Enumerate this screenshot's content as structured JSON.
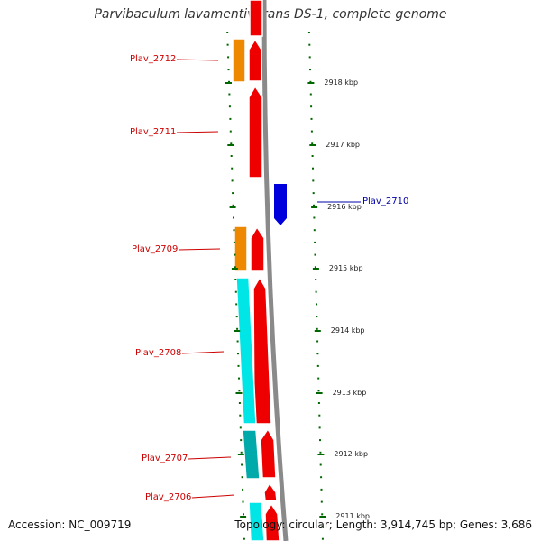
{
  "title": "Parvibaculum lavamentivorans DS-1, complete genome",
  "footer": {
    "accession": "Accession: NC_009719",
    "summary": "Topology: circular; Length: 3,914,745 bp; Genes: 3,686"
  },
  "tick_labels": [
    "2918 kbp",
    "2917 kbp",
    "2916 kbp",
    "2915 kbp",
    "2914 kbp",
    "2913 kbp",
    "2912 kbp",
    "2911 kbp"
  ],
  "genes": [
    {
      "label": "Plav_2712",
      "strand": "reverse"
    },
    {
      "label": "Plav_2711",
      "strand": "reverse"
    },
    {
      "label": "Plav_2710",
      "strand": "forward"
    },
    {
      "label": "Plav_2709",
      "strand": "reverse"
    },
    {
      "label": "Plav_2708",
      "strand": "reverse"
    },
    {
      "label": "Plav_2707",
      "strand": "reverse"
    },
    {
      "label": "Plav_2706",
      "strand": "reverse"
    }
  ],
  "colors": {
    "backbone": "#8a8a8a",
    "cds_red": "#ee0000",
    "feature_orange": "#ee8800",
    "feature_cyan": "#00e5e5",
    "feature_teal": "#00aaaa",
    "forward_blue": "#0000dd",
    "tick_green": "#006600",
    "label_red": "#cc0000",
    "label_blue": "#0000aa"
  }
}
